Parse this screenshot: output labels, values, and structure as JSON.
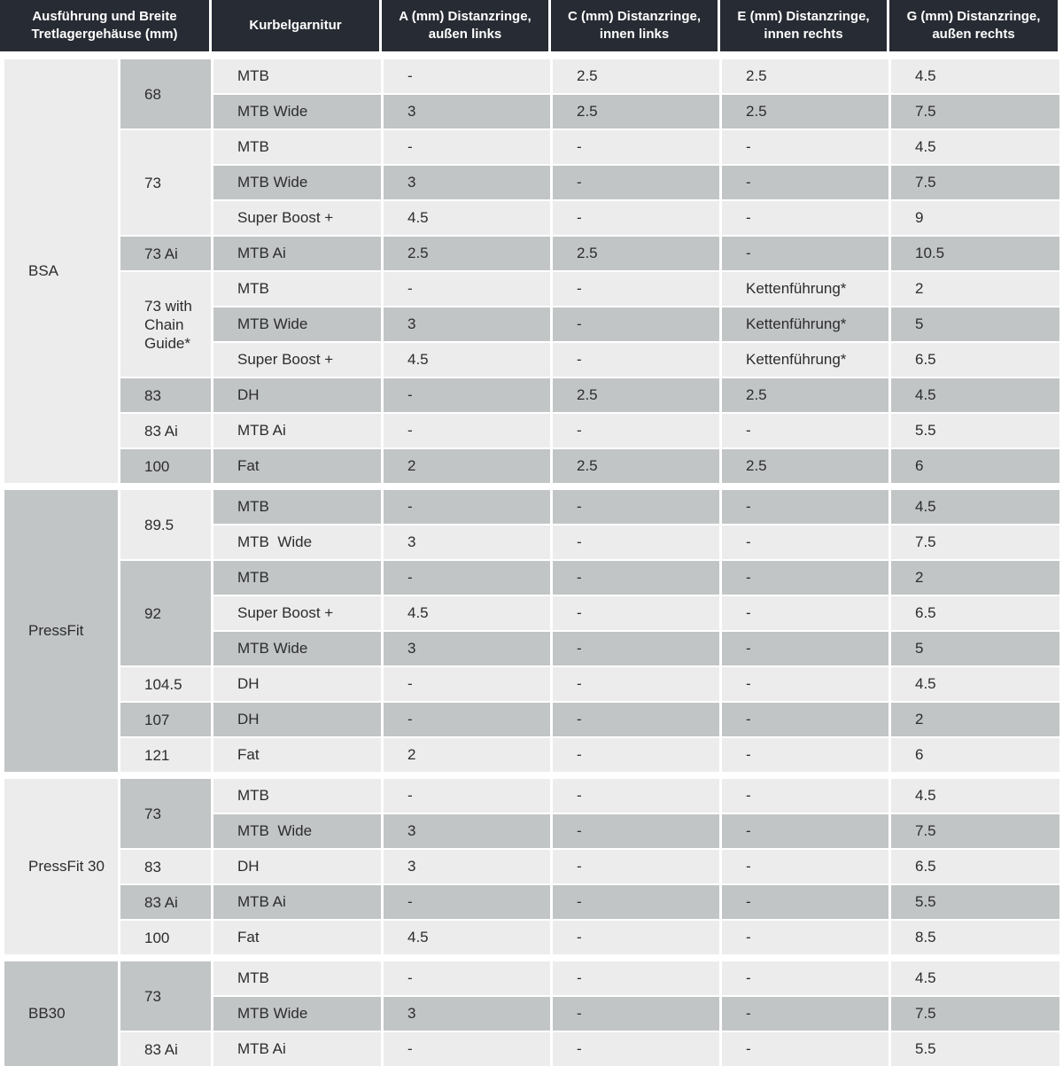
{
  "colors": {
    "header_bg": "#272b33",
    "header_text": "#ffffff",
    "row_light": "#ececec",
    "row_dark": "#c2c5c6",
    "text": "#2c2c2c"
  },
  "header": {
    "columns": [
      {
        "label": "Ausführung und Breite Tretlagergehäuse (mm)"
      },
      {
        "label": "Kurbelgarnitur"
      },
      {
        "label": "A (mm) Distanzringe, außen links"
      },
      {
        "label": "C (mm) Distanzringe, innen links"
      },
      {
        "label": "E (mm) Distanzringe, innen rechts"
      },
      {
        "label": "G (mm) Distanzringe, außen rechts"
      }
    ]
  },
  "sections": [
    {
      "label": "BSA",
      "first_row_shade": "light",
      "groups": [
        {
          "width": "68",
          "rows": [
            {
              "crank": "MTB",
              "a": "-",
              "c": "2.5",
              "e": "2.5",
              "g": "4.5"
            },
            {
              "crank": "MTB Wide",
              "a": "3",
              "c": "2.5",
              "e": "2.5",
              "g": "7.5"
            }
          ]
        },
        {
          "width": "73",
          "rows": [
            {
              "crank": "MTB",
              "a": "-",
              "c": "-",
              "e": "-",
              "g": "4.5"
            },
            {
              "crank": "MTB Wide",
              "a": "3",
              "c": "-",
              "e": "-",
              "g": "7.5"
            },
            {
              "crank": "Super Boost +",
              "a": "4.5",
              "c": "-",
              "e": "-",
              "g": "9"
            }
          ]
        },
        {
          "width": "73 Ai",
          "rows": [
            {
              "crank": "MTB Ai",
              "a": "2.5",
              "c": "2.5",
              "e": "-",
              "g": "10.5"
            }
          ]
        },
        {
          "width": "73 with Chain Guide*",
          "rows": [
            {
              "crank": "MTB",
              "a": "-",
              "c": "-",
              "e": "Kettenführung*",
              "g": "2"
            },
            {
              "crank": "MTB Wide",
              "a": "3",
              "c": "-",
              "e": "Kettenführung*",
              "g": "5"
            },
            {
              "crank": "Super Boost +",
              "a": "4.5",
              "c": "-",
              "e": "Kettenführung*",
              "g": "6.5"
            }
          ]
        },
        {
          "width": "83",
          "rows": [
            {
              "crank": "DH",
              "a": "-",
              "c": "2.5",
              "e": "2.5",
              "g": "4.5"
            }
          ]
        },
        {
          "width": "83 Ai",
          "rows": [
            {
              "crank": "MTB Ai",
              "a": "-",
              "c": "-",
              "e": "-",
              "g": "5.5"
            }
          ]
        },
        {
          "width": "100",
          "rows": [
            {
              "crank": "Fat",
              "a": "2",
              "c": "2.5",
              "e": "2.5",
              "g": "6"
            }
          ]
        }
      ]
    },
    {
      "label": "PressFit",
      "first_row_shade": "dark",
      "groups": [
        {
          "width": "89.5",
          "rows": [
            {
              "crank": "MTB",
              "a": "-",
              "c": "-",
              "e": "-",
              "g": "4.5"
            },
            {
              "crank": "MTB  Wide",
              "a": "3",
              "c": "-",
              "e": "-",
              "g": "7.5"
            }
          ]
        },
        {
          "width": "92",
          "rows": [
            {
              "crank": "MTB",
              "a": "-",
              "c": "-",
              "e": "-",
              "g": "2"
            },
            {
              "crank": "Super Boost +",
              "a": "4.5",
              "c": "-",
              "e": "-",
              "g": "6.5"
            },
            {
              "crank": "MTB Wide",
              "a": "3",
              "c": "-",
              "e": "-",
              "g": "5"
            }
          ]
        },
        {
          "width": "104.5",
          "rows": [
            {
              "crank": "DH",
              "a": "-",
              "c": "-",
              "e": "-",
              "g": "4.5"
            }
          ]
        },
        {
          "width": "107",
          "rows": [
            {
              "crank": "DH",
              "a": "-",
              "c": "-",
              "e": "-",
              "g": "2"
            }
          ]
        },
        {
          "width": "121",
          "rows": [
            {
              "crank": "Fat",
              "a": "2",
              "c": "-",
              "e": "-",
              "g": "6"
            }
          ]
        }
      ]
    },
    {
      "label": "PressFit 30",
      "first_row_shade": "light",
      "groups": [
        {
          "width": "73",
          "rows": [
            {
              "crank": "MTB",
              "a": "-",
              "c": "-",
              "e": "-",
              "g": "4.5"
            },
            {
              "crank": "MTB  Wide",
              "a": "3",
              "c": "-",
              "e": "-",
              "g": "7.5"
            }
          ]
        },
        {
          "width": "83",
          "rows": [
            {
              "crank": "DH",
              "a": "3",
              "c": "-",
              "e": "-",
              "g": "6.5"
            }
          ]
        },
        {
          "width": "83 Ai",
          "rows": [
            {
              "crank": "MTB Ai",
              "a": "-",
              "c": "-",
              "e": "-",
              "g": "5.5"
            }
          ]
        },
        {
          "width": "100",
          "rows": [
            {
              "crank": "Fat",
              "a": "4.5",
              "c": "-",
              "e": "-",
              "g": "8.5"
            }
          ]
        }
      ]
    },
    {
      "label": "BB30",
      "first_row_shade": "light",
      "groups": [
        {
          "width": "73",
          "rows": [
            {
              "crank": "MTB",
              "a": "-",
              "c": "-",
              "e": "-",
              "g": "4.5"
            },
            {
              "crank": "MTB Wide",
              "a": "3",
              "c": "-",
              "e": "-",
              "g": "7.5"
            }
          ]
        },
        {
          "width": "83 Ai",
          "rows": [
            {
              "crank": "MTB Ai",
              "a": "-",
              "c": "-",
              "e": "-",
              "g": "5.5"
            }
          ]
        }
      ]
    }
  ]
}
